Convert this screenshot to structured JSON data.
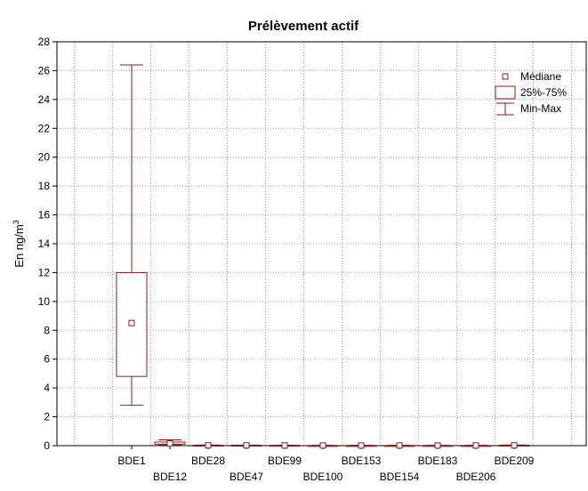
{
  "chart_data": {
    "type": "box",
    "title": "Prélèvement actif",
    "xlabel": "",
    "ylabel": "En ng/m",
    "ylabel_superscript": "3",
    "ylim": [
      0,
      28
    ],
    "yticks": [
      0,
      2,
      4,
      6,
      8,
      10,
      12,
      14,
      16,
      18,
      20,
      22,
      24,
      26,
      28
    ],
    "grid": true,
    "legend_position": "top-right",
    "color": "#8b1a1a",
    "legend": {
      "median": "Médiane",
      "box": "25%-75%",
      "whisker": "Min-Max"
    },
    "categories": [
      "BDE1",
      "BDE12",
      "BDE28",
      "BDE47",
      "BDE99",
      "BDE100",
      "BDE153",
      "BDE154",
      "BDE183",
      "BDE206",
      "BDE209"
    ],
    "series": [
      {
        "category": "BDE1",
        "min": 2.8,
        "q1": 4.8,
        "median": 8.5,
        "q3": 12.0,
        "max": 26.4
      },
      {
        "category": "BDE12",
        "min": 0.05,
        "q1": 0.1,
        "median": 0.15,
        "q3": 0.25,
        "max": 0.4
      },
      {
        "category": "BDE28",
        "min": 0.0,
        "q1": 0.0,
        "median": 0.02,
        "q3": 0.03,
        "max": 0.05
      },
      {
        "category": "BDE47",
        "min": 0.0,
        "q1": 0.0,
        "median": 0.02,
        "q3": 0.03,
        "max": 0.04
      },
      {
        "category": "BDE99",
        "min": 0.0,
        "q1": 0.0,
        "median": 0.01,
        "q3": 0.02,
        "max": 0.03
      },
      {
        "category": "BDE100",
        "min": 0.0,
        "q1": 0.0,
        "median": 0.01,
        "q3": 0.01,
        "max": 0.02
      },
      {
        "category": "BDE153",
        "min": 0.0,
        "q1": 0.0,
        "median": 0.01,
        "q3": 0.01,
        "max": 0.02
      },
      {
        "category": "BDE154",
        "min": 0.0,
        "q1": 0.0,
        "median": 0.01,
        "q3": 0.01,
        "max": 0.02
      },
      {
        "category": "BDE183",
        "min": 0.0,
        "q1": 0.0,
        "median": 0.01,
        "q3": 0.01,
        "max": 0.02
      },
      {
        "category": "BDE206",
        "min": 0.0,
        "q1": 0.0,
        "median": 0.01,
        "q3": 0.01,
        "max": 0.02
      },
      {
        "category": "BDE209",
        "min": 0.0,
        "q1": 0.0,
        "median": 0.02,
        "q3": 0.03,
        "max": 0.05
      }
    ]
  }
}
